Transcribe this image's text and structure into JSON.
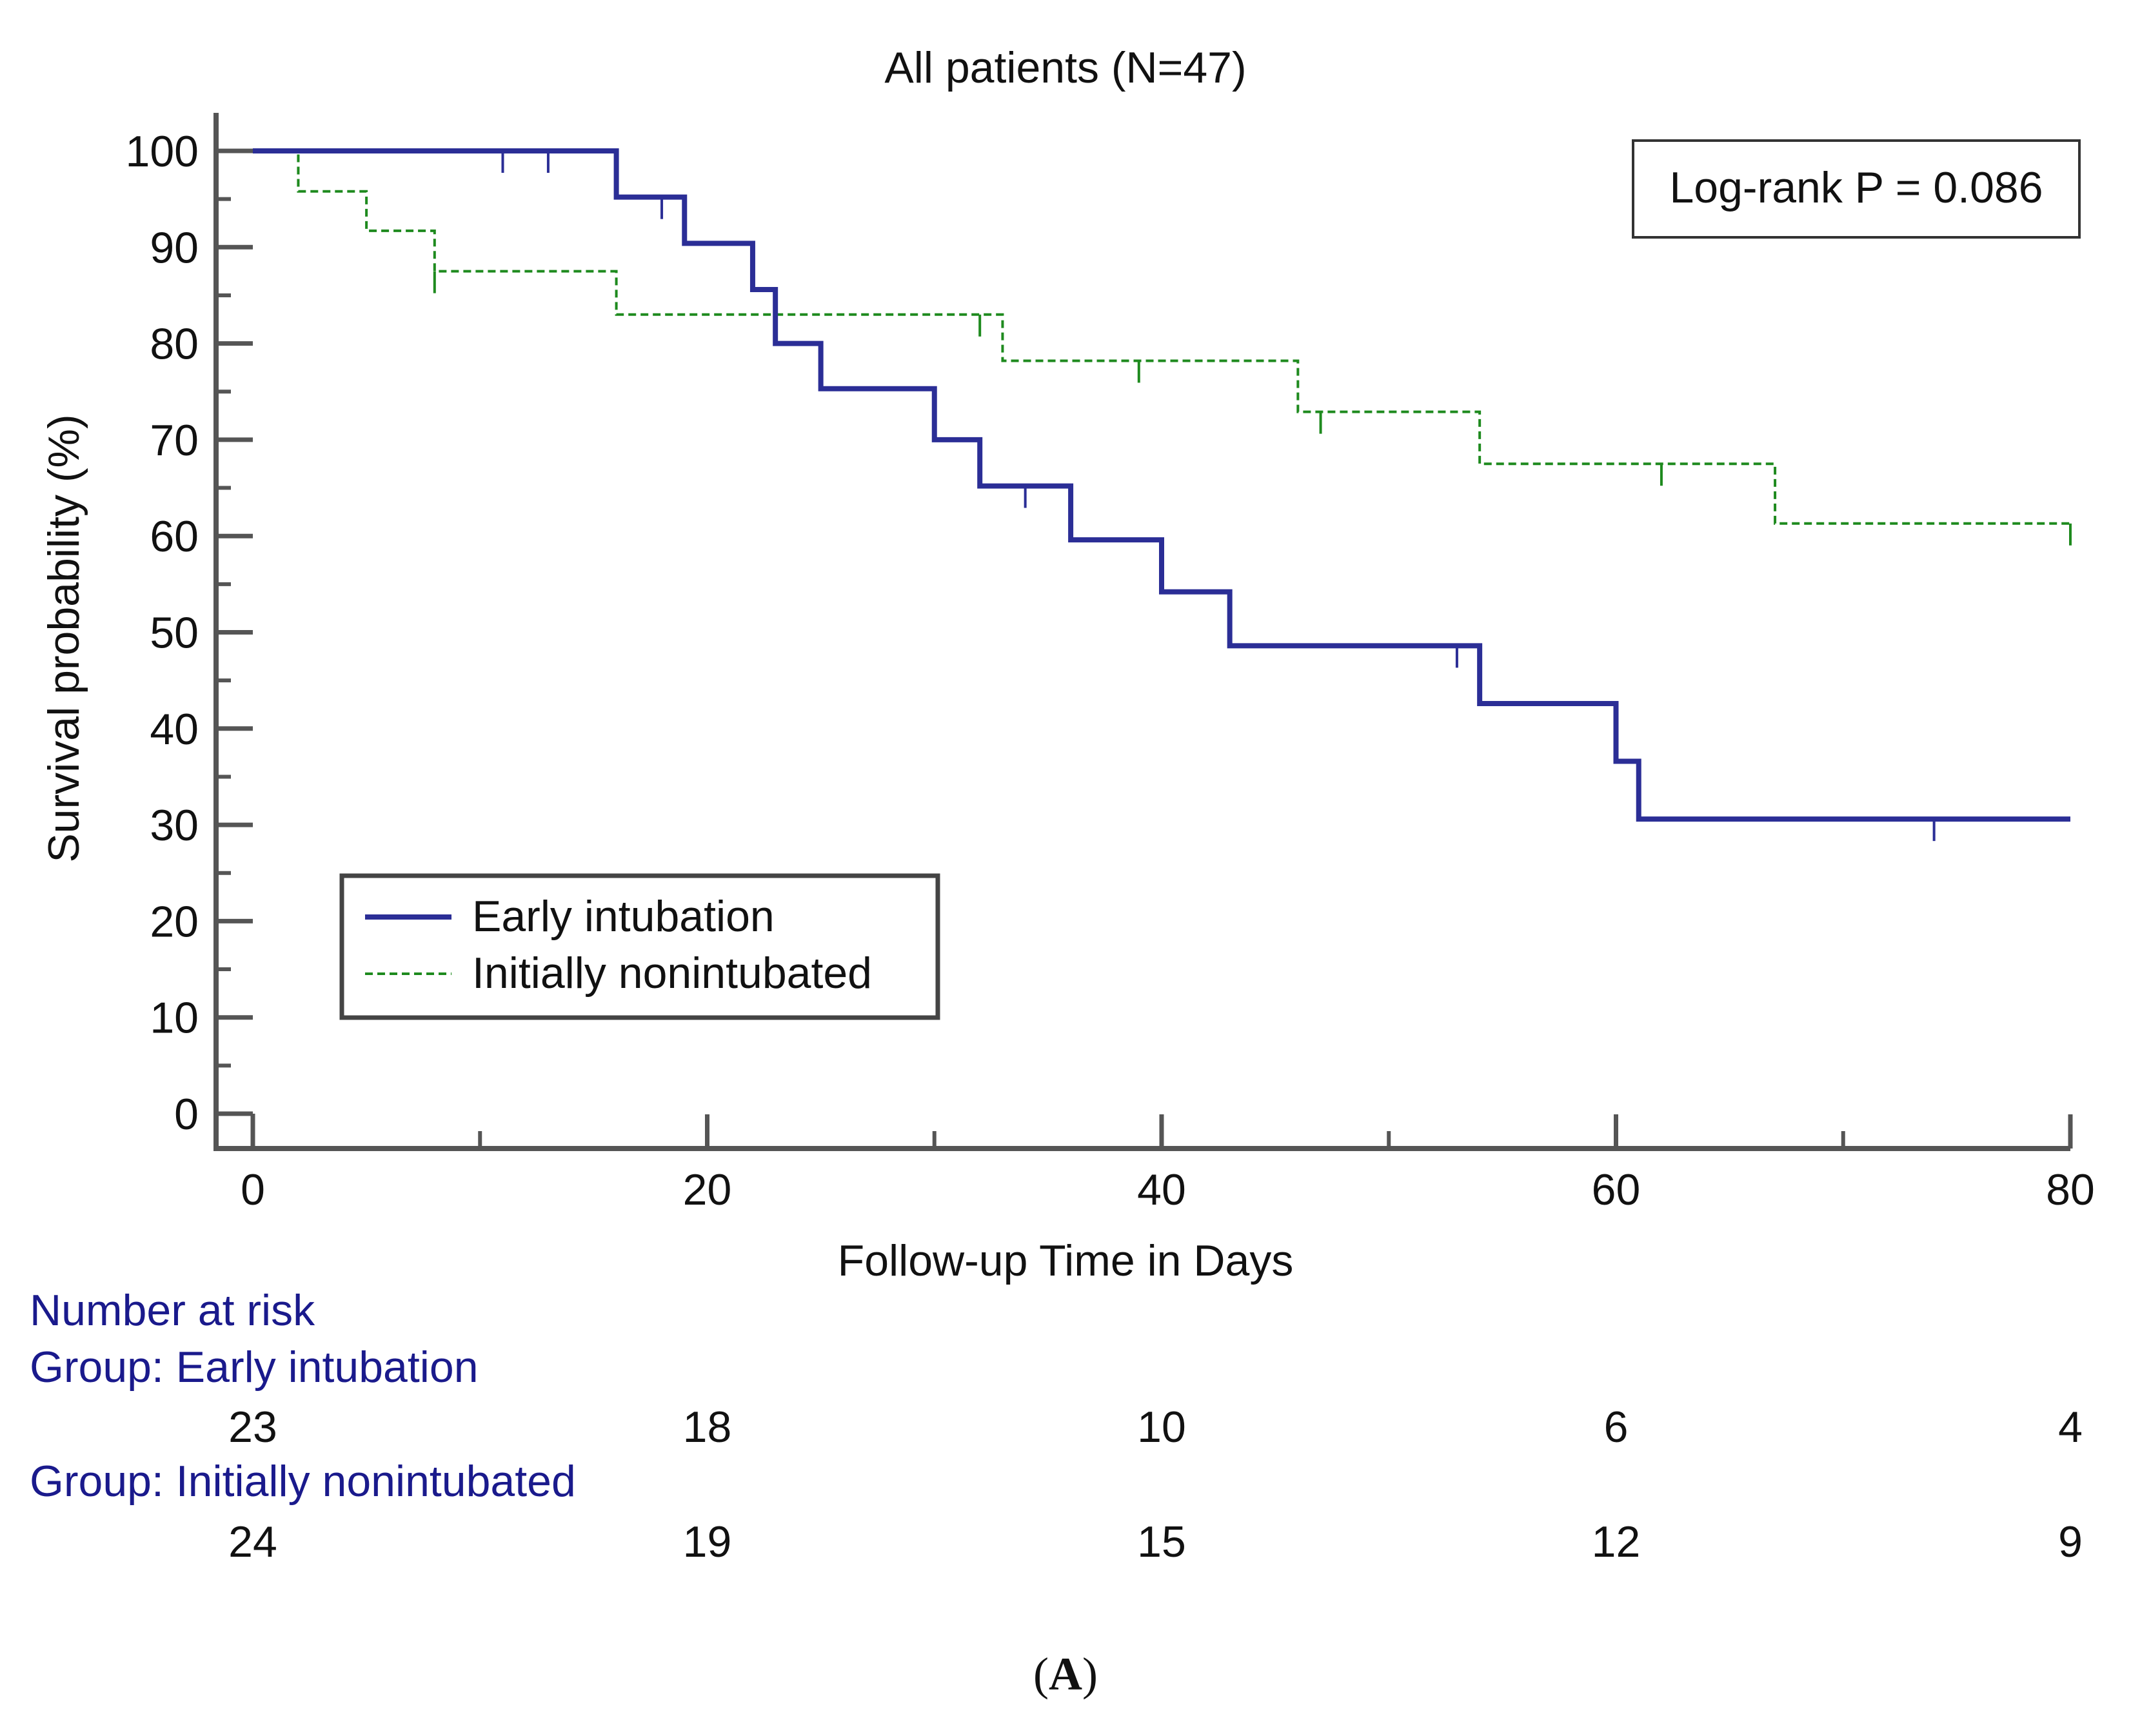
{
  "chart_data": {
    "type": "line",
    "subtype": "kaplan-meier",
    "title": "All patients (N=47)",
    "xlabel": "Follow-up Time in Days",
    "ylabel": "Survival probability (%)",
    "xlim": [
      0,
      80
    ],
    "ylim": [
      0,
      100
    ],
    "xticks": [
      0,
      20,
      40,
      60,
      80
    ],
    "yticks": [
      0,
      10,
      20,
      30,
      40,
      50,
      60,
      70,
      80,
      90,
      100
    ],
    "annotation": "Log-rank P = 0.086",
    "legend_position": "lower-left",
    "series": [
      {
        "name": "Early intubation",
        "color": "#2b2e96",
        "style": "solid",
        "steps": [
          [
            0,
            100
          ],
          [
            16,
            95.2
          ],
          [
            19,
            90.4
          ],
          [
            22,
            85.6
          ],
          [
            23,
            80.0
          ],
          [
            25,
            75.3
          ],
          [
            30,
            70.0
          ],
          [
            32,
            65.2
          ],
          [
            36,
            59.6
          ],
          [
            40,
            54.2
          ],
          [
            43,
            48.6
          ],
          [
            54,
            42.6
          ],
          [
            60,
            36.6
          ],
          [
            61,
            30.6
          ],
          [
            80,
            30.6
          ]
        ],
        "censored": [
          [
            11,
            100
          ],
          [
            13,
            100
          ],
          [
            18,
            95.2
          ],
          [
            34,
            65.2
          ],
          [
            53,
            48.6
          ],
          [
            74,
            30.6
          ]
        ]
      },
      {
        "name": "Initially nonintubated",
        "color": "#1e8a1e",
        "style": "dashed",
        "steps": [
          [
            0,
            100
          ],
          [
            2,
            95.8
          ],
          [
            5,
            91.7
          ],
          [
            8,
            87.5
          ],
          [
            16,
            83.0
          ],
          [
            33,
            78.2
          ],
          [
            46,
            72.9
          ],
          [
            54,
            67.5
          ],
          [
            67,
            61.3
          ],
          [
            80,
            61.3
          ]
        ],
        "censored": [
          [
            8,
            87.5
          ],
          [
            32,
            83.0
          ],
          [
            39,
            78.2
          ],
          [
            47,
            72.9
          ],
          [
            62,
            67.5
          ],
          [
            80,
            61.3
          ]
        ]
      }
    ],
    "number_at_risk": {
      "heading": "Number at risk",
      "times": [
        0,
        20,
        40,
        60,
        80
      ],
      "groups": [
        {
          "label": "Group: Early intubation",
          "counts": [
            "23",
            "18",
            "10",
            "6",
            "4"
          ]
        },
        {
          "label": "Group: Initially nonintubated",
          "counts": [
            "24",
            "19",
            "15",
            "12",
            "9"
          ]
        }
      ]
    }
  },
  "panel_label": {
    "open": "(",
    "letter": "A",
    "close": ")"
  }
}
